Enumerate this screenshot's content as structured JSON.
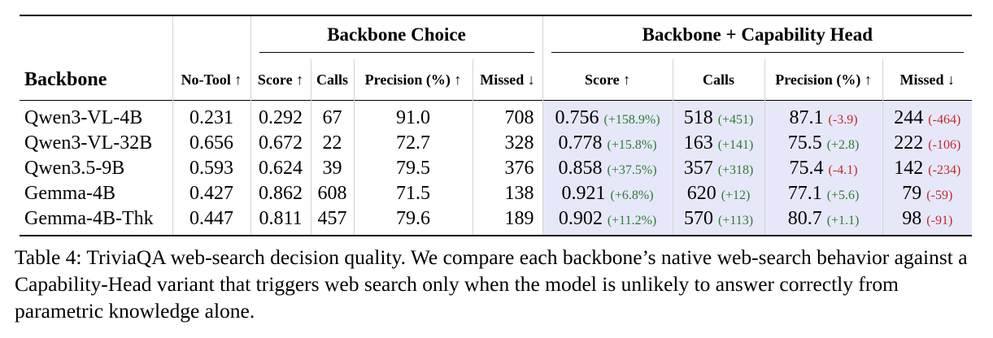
{
  "table": {
    "group_headers": {
      "backbone_choice": "Backbone Choice",
      "capability_head": "Backbone + Capability Head"
    },
    "columns": {
      "backbone": "Backbone",
      "no_tool": "No-Tool ↑",
      "score": "Score ↑",
      "calls": "Calls",
      "precision": "Precision (%) ↑",
      "missed": "Missed ↓",
      "cap_score": "Score ↑",
      "cap_calls": "Calls",
      "cap_precision": "Precision (%) ↑",
      "cap_missed": "Missed ↓"
    },
    "rows": [
      {
        "name": "Qwen3-VL-4B",
        "no_tool": "0.231",
        "score": "0.292",
        "calls": "67",
        "precision": "91.0",
        "missed": "708",
        "cap_score": "0.756",
        "cap_score_delta": "(+158.9%)",
        "cap_calls": "518",
        "cap_calls_delta": "(+451)",
        "cap_precision": "87.1",
        "cap_precision_delta": "(-3.9)",
        "cap_missed": "244",
        "cap_missed_delta": "(-464)"
      },
      {
        "name": "Qwen3-VL-32B",
        "no_tool": "0.656",
        "score": "0.672",
        "calls": "22",
        "precision": "72.7",
        "missed": "328",
        "cap_score": "0.778",
        "cap_score_delta": "(+15.8%)",
        "cap_calls": "163",
        "cap_calls_delta": "(+141)",
        "cap_precision": "75.5",
        "cap_precision_delta": "(+2.8)",
        "cap_missed": "222",
        "cap_missed_delta": "(-106)"
      },
      {
        "name": "Qwen3.5-9B",
        "no_tool": "0.593",
        "score": "0.624",
        "calls": "39",
        "precision": "79.5",
        "missed": "376",
        "cap_score": "0.858",
        "cap_score_delta": "(+37.5%)",
        "cap_calls": "357",
        "cap_calls_delta": "(+318)",
        "cap_precision": "75.4",
        "cap_precision_delta": "(-4.1)",
        "cap_missed": "142",
        "cap_missed_delta": "(-234)"
      },
      {
        "name": "Gemma-4B",
        "no_tool": "0.427",
        "score": "0.862",
        "calls": "608",
        "precision": "71.5",
        "missed": "138",
        "cap_score": "0.921",
        "cap_score_delta": "(+6.8%)",
        "cap_calls": "620",
        "cap_calls_delta": "(+12)",
        "cap_precision": "77.1",
        "cap_precision_delta": "(+5.6)",
        "cap_missed": "79",
        "cap_missed_delta": "(-59)"
      },
      {
        "name": "Gemma-4B-Thk",
        "no_tool": "0.447",
        "score": "0.811",
        "calls": "457",
        "precision": "79.6",
        "missed": "189",
        "cap_score": "0.902",
        "cap_score_delta": "(+11.2%)",
        "cap_calls": "570",
        "cap_calls_delta": "(+113)",
        "cap_precision": "80.7",
        "cap_precision_delta": "(+1.1)",
        "cap_missed": "98",
        "cap_missed_delta": "(-91)"
      }
    ],
    "colors": {
      "capability_highlight": "#e6e8fa",
      "delta_positive": "#2e7d32",
      "delta_negative": "#c62828"
    }
  },
  "caption": "Table 4: TriviaQA web-search decision quality. We compare each backbone’s native web-search behavior against a Capability-Head variant that triggers web search only when the model is unlikely to answer correctly from parametric knowledge alone."
}
